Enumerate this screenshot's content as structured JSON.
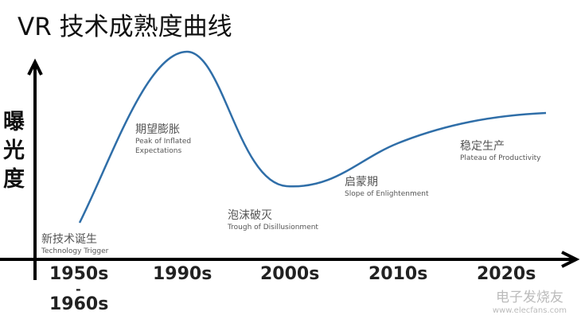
{
  "title": "VR 技术成熟度曲线",
  "y_axis_label": "曝光度",
  "curve_color": "#2f6ea8",
  "phases": [
    {
      "cn": "新技术诞生",
      "en": "Technology Trigger"
    },
    {
      "cn": "期望膨胀",
      "en": "Peak of Inflated Expectations"
    },
    {
      "cn": "泡沫破灭",
      "en": "Trough of Disillusionment"
    },
    {
      "cn": "启蒙期",
      "en": "Slope of Enlightenment"
    },
    {
      "cn": "稳定生产",
      "en": "Plateau of Productivity"
    }
  ],
  "x_ticks": [
    "1950s",
    "-",
    "1960s",
    "1990s",
    "2000s",
    "2010s",
    "2020s"
  ],
  "watermark": {
    "name": "电子发烧友",
    "url": "www.elecfans.com"
  }
}
